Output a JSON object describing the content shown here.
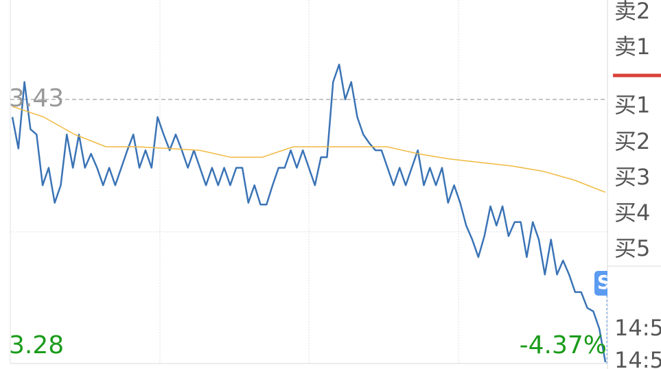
{
  "chart_data": {
    "type": "line",
    "ylim": [
      3.28,
      3.4868
    ],
    "yticks": [
      {
        "value": 3.43,
        "label": "3.43"
      },
      {
        "value": 3.28,
        "label": "3.28"
      }
    ],
    "change_label": "-4.37%",
    "series": [
      {
        "color": "#3a73b5",
        "values": [
          3.42,
          3.402,
          3.44,
          3.413,
          3.41,
          3.381,
          3.391,
          3.371,
          3.381,
          3.41,
          3.391,
          3.41,
          3.391,
          3.399,
          3.391,
          3.381,
          3.391,
          3.381,
          3.391,
          3.401,
          3.41,
          3.391,
          3.401,
          3.391,
          3.42,
          3.41,
          3.401,
          3.41,
          3.401,
          3.391,
          3.401,
          3.391,
          3.381,
          3.391,
          3.381,
          3.391,
          3.381,
          3.391,
          3.391,
          3.371,
          3.381,
          3.37,
          3.37,
          3.381,
          3.391,
          3.391,
          3.401,
          3.391,
          3.401,
          3.391,
          3.381,
          3.397,
          3.397,
          3.44,
          3.45,
          3.43,
          3.44,
          3.42,
          3.41,
          3.405,
          3.401,
          3.401,
          3.391,
          3.381,
          3.391,
          3.381,
          3.391,
          3.401,
          3.381,
          3.391,
          3.381,
          3.391,
          3.371,
          3.381,
          3.371,
          3.358,
          3.35,
          3.34,
          3.352,
          3.369,
          3.358,
          3.369,
          3.352,
          3.36,
          3.36,
          3.34,
          3.36,
          3.35,
          3.33,
          3.35,
          3.33,
          3.338,
          3.33,
          3.32,
          3.32,
          3.311,
          3.309,
          3.299,
          3.28
        ]
      },
      {
        "color": "#f0b940",
        "values": [
          3.426,
          3.42,
          3.41,
          3.403,
          3.403,
          3.402,
          3.401,
          3.397,
          3.397,
          3.403,
          3.403,
          3.403,
          3.403,
          3.399,
          3.396,
          3.394,
          3.392,
          3.389,
          3.384,
          3.377
        ]
      }
    ]
  },
  "order_book": [
    "卖2",
    "卖1",
    "买1",
    "买2",
    "买3",
    "买4",
    "买5"
  ],
  "badge": "S",
  "times": [
    "14:5",
    "14:5"
  ]
}
